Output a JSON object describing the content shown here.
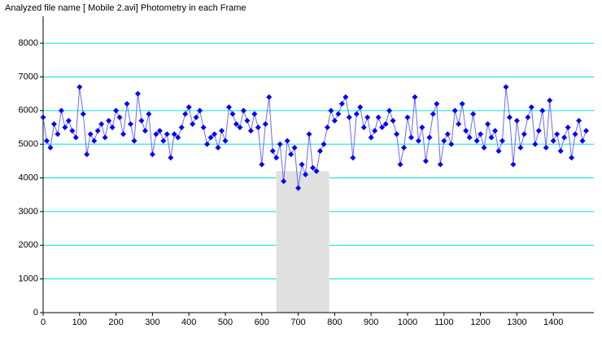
{
  "chart_data": {
    "type": "line",
    "title": "Analyzed file name [ Mobile 2.avi]   Photometry in each Frame",
    "x": [
      0,
      10,
      20,
      30,
      40,
      50,
      60,
      70,
      80,
      90,
      100,
      110,
      120,
      130,
      140,
      150,
      160,
      170,
      180,
      190,
      200,
      210,
      220,
      230,
      240,
      250,
      260,
      270,
      280,
      290,
      300,
      310,
      320,
      330,
      340,
      350,
      360,
      370,
      380,
      390,
      400,
      410,
      420,
      430,
      440,
      450,
      460,
      470,
      480,
      490,
      500,
      510,
      520,
      530,
      540,
      550,
      560,
      570,
      580,
      590,
      600,
      610,
      620,
      630,
      640,
      650,
      660,
      670,
      680,
      690,
      700,
      710,
      720,
      730,
      740,
      750,
      760,
      770,
      780,
      790,
      800,
      810,
      820,
      830,
      840,
      850,
      860,
      870,
      880,
      890,
      900,
      910,
      920,
      930,
      940,
      950,
      960,
      970,
      980,
      990,
      1000,
      1010,
      1020,
      1030,
      1040,
      1050,
      1060,
      1070,
      1080,
      1090,
      1100,
      1110,
      1120,
      1130,
      1140,
      1150,
      1160,
      1170,
      1180,
      1190,
      1200,
      1210,
      1220,
      1230,
      1240,
      1250,
      1260,
      1270,
      1280,
      1290,
      1300,
      1310,
      1320,
      1330,
      1340,
      1350,
      1360,
      1370,
      1380,
      1390,
      1400,
      1410,
      1420,
      1430,
      1440,
      1450,
      1460,
      1470,
      1480,
      1490
    ],
    "series": [
      {
        "color": "#0000ff",
        "values": [
          5800,
          5100,
          4900,
          5600,
          5300,
          6000,
          5500,
          5700,
          5400,
          5200,
          6700,
          5900,
          4700,
          5300,
          5100,
          5400,
          5600,
          5200,
          5700,
          5500,
          6000,
          5800,
          5300,
          6200,
          5600,
          5100,
          6500,
          5700,
          5400,
          5900,
          4700,
          5300,
          5400,
          5100,
          5300,
          4600,
          5300,
          5200,
          5500,
          5900,
          6100,
          5600,
          5800,
          6000,
          5500,
          5000,
          5200,
          5300,
          4900,
          5400,
          5100,
          6100,
          5900,
          5600,
          5500,
          6000,
          5700,
          5400,
          5900,
          5500,
          4400,
          5600,
          6400,
          4800,
          4600,
          5000,
          3900,
          5100,
          4700,
          4900,
          3700,
          4400,
          4100,
          5300,
          4300,
          4200,
          4800,
          5000,
          5500,
          6000,
          5700,
          5900,
          6200,
          6400,
          5800,
          4600,
          5900,
          6100,
          5500,
          5800,
          5200,
          5400,
          5800,
          5500,
          5600,
          6000,
          5700,
          5300,
          4400,
          4900,
          5800,
          5200,
          6400,
          5100,
          5500,
          4500,
          5200,
          5900,
          6200,
          4400,
          5100,
          5300,
          5000,
          6000,
          5600,
          6200,
          5400,
          5200,
          5900,
          5100,
          5300,
          4900,
          5600,
          5200,
          5400,
          4800,
          5100,
          6700,
          5800,
          4400,
          5700,
          4900,
          5300,
          5800,
          6100,
          5000,
          5400,
          6000,
          4900,
          6300,
          5100,
          5300,
          4800,
          5200,
          5500,
          4600,
          5300,
          5700,
          5100,
          5400
        ]
      }
    ],
    "highlight": {
      "xlim": [
        640,
        785
      ],
      "ylim": [
        0,
        4200
      ]
    },
    "xlim": [
      0,
      1500
    ],
    "ylim": [
      0,
      8800
    ],
    "xticks": [
      0,
      100,
      200,
      300,
      400,
      500,
      600,
      700,
      800,
      900,
      1000,
      1100,
      1200,
      1300,
      1400
    ],
    "yticks": [
      0,
      1000,
      2000,
      3000,
      4000,
      5000,
      6000,
      7000,
      8000
    ],
    "grid": true
  }
}
